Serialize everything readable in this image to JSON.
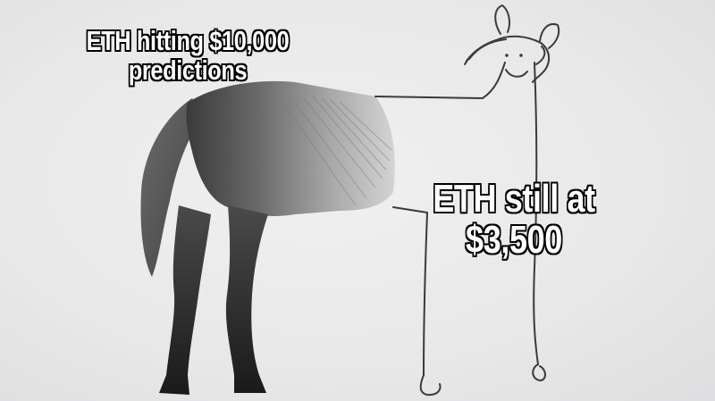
{
  "captions": {
    "top": {
      "line1": "ETH hitting $10,000",
      "line2": "predictions"
    },
    "right": {
      "line1": "ETH still at",
      "line2": "$3,500"
    }
  },
  "colors": {
    "paper": "#e9e9ea",
    "caption_text": "#ffffff",
    "caption_outline": "#000000",
    "pencil": "#2a2a2a"
  },
  "illustration": "horse-drawing-meme"
}
